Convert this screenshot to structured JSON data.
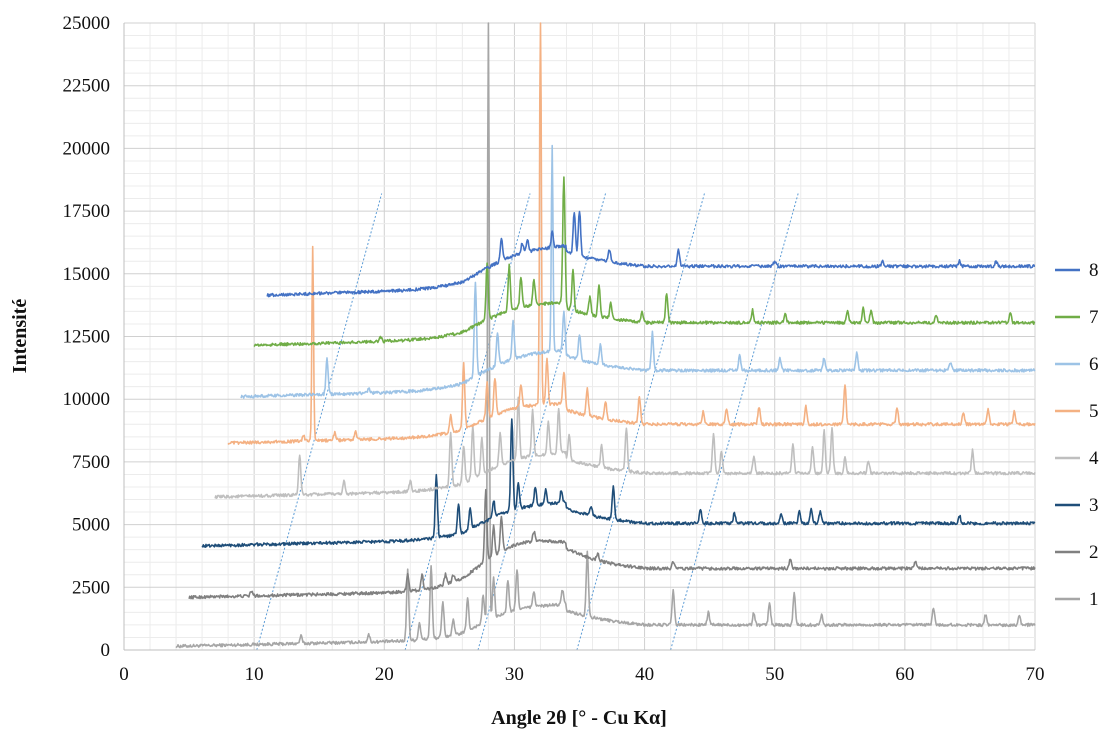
{
  "chart_data": {
    "type": "line",
    "xlabel": "Angle 2θ [° - Cu Kα]",
    "ylabel": "Intensité",
    "xlim": [
      0,
      70
    ],
    "ylim": [
      0,
      25000
    ],
    "x_ticks": [
      "0",
      "10",
      "20",
      "30",
      "40",
      "50",
      "60",
      "70"
    ],
    "y_ticks": [
      "0",
      "2500",
      "5000",
      "7500",
      "10000",
      "12500",
      "15000",
      "17500",
      "20000",
      "22500",
      "25000"
    ],
    "grid": "major and minor",
    "legend_position": "right",
    "legend_order": [
      "8",
      "7",
      "6",
      "5",
      "4",
      "3",
      "2",
      "1"
    ],
    "series": [
      {
        "name": "1",
        "color": "#a6a6a6",
        "x_start": 4,
        "baseline": 150,
        "end_level": 1000,
        "peaks": [
          [
            13.6,
            300
          ],
          [
            18.8,
            300
          ],
          [
            21.8,
            2800
          ],
          [
            22.7,
            700
          ],
          [
            23.6,
            2900
          ],
          [
            24.5,
            1400
          ],
          [
            25.3,
            600
          ],
          [
            26.4,
            1300
          ],
          [
            27.6,
            1100
          ],
          [
            28.0,
            25000
          ],
          [
            28.4,
            1600
          ],
          [
            29.5,
            1300
          ],
          [
            30.2,
            1600
          ],
          [
            31.5,
            600
          ],
          [
            33.7,
            600
          ],
          [
            35.6,
            2600
          ],
          [
            42.2,
            1400
          ],
          [
            44.9,
            500
          ],
          [
            48.4,
            500
          ],
          [
            49.6,
            900
          ],
          [
            51.5,
            1300
          ],
          [
            53.6,
            400
          ],
          [
            62.2,
            700
          ],
          [
            66.2,
            400
          ],
          [
            68.8,
            400
          ]
        ]
      },
      {
        "name": "2",
        "color": "#808080",
        "x_start": 5,
        "baseline": 2100,
        "end_level": 3250,
        "peaks": [
          [
            9.8,
            200
          ],
          [
            21.8,
            700
          ],
          [
            22.9,
            600
          ],
          [
            24.7,
            400
          ],
          [
            25.3,
            300
          ],
          [
            27.8,
            2900
          ],
          [
            28.4,
            1200
          ],
          [
            29.0,
            1400
          ],
          [
            31.5,
            400
          ],
          [
            36.4,
            300
          ],
          [
            42.2,
            300
          ],
          [
            51.2,
            400
          ],
          [
            60.8,
            300
          ]
        ]
      },
      {
        "name": "3",
        "color": "#1f4e79",
        "x_start": 6,
        "baseline": 4150,
        "end_level": 5050,
        "peaks": [
          [
            24.0,
            2500
          ],
          [
            25.7,
            1200
          ],
          [
            26.6,
            800
          ],
          [
            28.4,
            700
          ],
          [
            29.8,
            3700
          ],
          [
            30.3,
            1000
          ],
          [
            31.6,
            700
          ],
          [
            32.4,
            600
          ],
          [
            33.6,
            500
          ],
          [
            35.9,
            400
          ],
          [
            37.6,
            1300
          ],
          [
            44.3,
            600
          ],
          [
            46.9,
            400
          ],
          [
            50.5,
            400
          ],
          [
            51.9,
            500
          ],
          [
            52.8,
            600
          ],
          [
            53.5,
            500
          ],
          [
            64.2,
            300
          ]
        ]
      },
      {
        "name": "4",
        "color": "#bfbfbf",
        "x_start": 7,
        "baseline": 6100,
        "end_level": 7050,
        "peaks": [
          [
            13.5,
            1600
          ],
          [
            16.9,
            500
          ],
          [
            22.0,
            400
          ],
          [
            25.1,
            2200
          ],
          [
            26.1,
            1500
          ],
          [
            26.8,
            2100
          ],
          [
            27.5,
            1400
          ],
          [
            28.9,
            1300
          ],
          [
            30.3,
            2400
          ],
          [
            31.4,
            1800
          ],
          [
            32.6,
            1300
          ],
          [
            33.4,
            1800
          ],
          [
            34.2,
            1000
          ],
          [
            36.7,
            900
          ],
          [
            38.6,
            1700
          ],
          [
            45.3,
            1600
          ],
          [
            45.9,
            900
          ],
          [
            48.4,
            700
          ],
          [
            51.4,
            1200
          ],
          [
            52.9,
            1100
          ],
          [
            53.8,
            1700
          ],
          [
            54.4,
            1800
          ],
          [
            55.4,
            600
          ],
          [
            57.2,
            500
          ],
          [
            65.2,
            900
          ]
        ]
      },
      {
        "name": "5",
        "color": "#f4b183",
        "x_start": 8,
        "baseline": 8250,
        "end_level": 9000,
        "peaks": [
          [
            13.8,
            200
          ],
          [
            14.5,
            7700
          ],
          [
            16.2,
            300
          ],
          [
            17.8,
            300
          ],
          [
            25.1,
            700
          ],
          [
            26.1,
            2600
          ],
          [
            27.9,
            1400
          ],
          [
            28.5,
            1500
          ],
          [
            30.5,
            900
          ],
          [
            32.0,
            16500
          ],
          [
            32.5,
            1800
          ],
          [
            33.8,
            1300
          ],
          [
            35.6,
            1100
          ],
          [
            37.0,
            700
          ],
          [
            39.6,
            1100
          ],
          [
            44.5,
            500
          ],
          [
            46.3,
            600
          ],
          [
            48.8,
            700
          ],
          [
            52.4,
            700
          ],
          [
            55.4,
            1600
          ],
          [
            59.4,
            700
          ],
          [
            64.5,
            500
          ],
          [
            66.4,
            600
          ],
          [
            68.4,
            500
          ]
        ]
      },
      {
        "name": "6",
        "color": "#9dc3e6",
        "x_start": 9,
        "baseline": 10100,
        "end_level": 11150,
        "peaks": [
          [
            15.6,
            1400
          ],
          [
            18.8,
            200
          ],
          [
            27.0,
            3800
          ],
          [
            28.7,
            1300
          ],
          [
            29.9,
            1500
          ],
          [
            32.9,
            8200
          ],
          [
            33.8,
            1500
          ],
          [
            35.0,
            1000
          ],
          [
            36.6,
            800
          ],
          [
            40.6,
            1500
          ],
          [
            47.3,
            600
          ],
          [
            50.4,
            500
          ],
          [
            53.8,
            500
          ],
          [
            56.3,
            700
          ],
          [
            63.5,
            300
          ]
        ]
      },
      {
        "name": "7",
        "color": "#70ad47",
        "x_start": 10,
        "baseline": 12150,
        "end_level": 13050,
        "peaks": [
          [
            19.7,
            200
          ],
          [
            27.9,
            2200
          ],
          [
            29.6,
            1800
          ],
          [
            30.5,
            1200
          ],
          [
            31.5,
            1000
          ],
          [
            33.8,
            5000
          ],
          [
            34.5,
            1600
          ],
          [
            35.8,
            700
          ],
          [
            36.5,
            1300
          ],
          [
            37.4,
            600
          ],
          [
            39.8,
            400
          ],
          [
            41.7,
            1200
          ],
          [
            48.3,
            500
          ],
          [
            50.8,
            400
          ],
          [
            55.6,
            500
          ],
          [
            56.8,
            600
          ],
          [
            57.4,
            500
          ],
          [
            62.4,
            300
          ],
          [
            68.1,
            400
          ]
        ]
      },
      {
        "name": "8",
        "color": "#4472c4",
        "x_start": 11,
        "baseline": 14150,
        "end_level": 15300,
        "peaks": [
          [
            29.0,
            900
          ],
          [
            30.6,
            400
          ],
          [
            31.0,
            500
          ],
          [
            32.9,
            600
          ],
          [
            34.6,
            1700
          ],
          [
            35.0,
            1800
          ],
          [
            37.3,
            500
          ],
          [
            42.6,
            700
          ],
          [
            50.0,
            200
          ],
          [
            58.3,
            200
          ],
          [
            64.2,
            200
          ],
          [
            67.0,
            200
          ]
        ]
      }
    ],
    "reference_lines": [
      [
        [
          10.2,
          0
        ],
        [
          19.8,
          18200
        ]
      ],
      [
        [
          21.6,
          0
        ],
        [
          31.2,
          18200
        ]
      ],
      [
        [
          27.2,
          0
        ],
        [
          37.0,
          18200
        ]
      ],
      [
        [
          34.8,
          0
        ],
        [
          44.6,
          18200
        ]
      ],
      [
        [
          42.0,
          0
        ],
        [
          51.8,
          18200
        ]
      ]
    ],
    "reference_line_color": "#5b9bd5"
  }
}
